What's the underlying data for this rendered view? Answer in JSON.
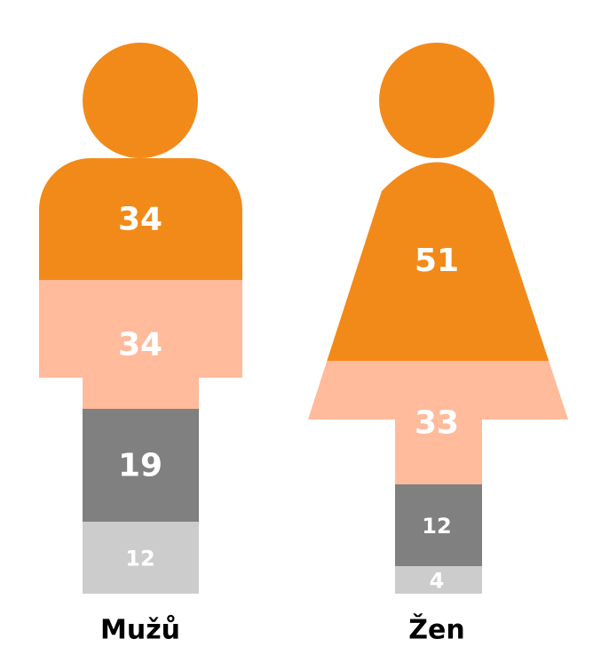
{
  "chart_data": {
    "type": "pictogram",
    "categories": [
      "Mužů",
      "Žen"
    ],
    "series": [
      {
        "color": "#f28a1a",
        "values": [
          34,
          51
        ]
      },
      {
        "color": "#ffbb9c",
        "values": [
          34,
          33
        ]
      },
      {
        "color": "#808080",
        "values": [
          19,
          12
        ]
      },
      {
        "color": "#cccccc",
        "values": [
          12,
          4
        ]
      }
    ]
  }
}
